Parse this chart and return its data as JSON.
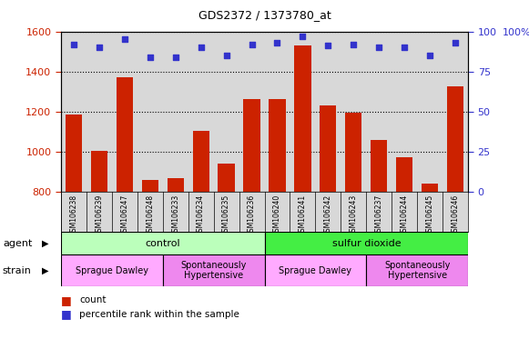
{
  "title": "GDS2372 / 1373780_at",
  "samples": [
    "GSM106238",
    "GSM106239",
    "GSM106247",
    "GSM106248",
    "GSM106233",
    "GSM106234",
    "GSM106235",
    "GSM106236",
    "GSM106240",
    "GSM106241",
    "GSM106242",
    "GSM106243",
    "GSM106237",
    "GSM106244",
    "GSM106245",
    "GSM106246"
  ],
  "counts": [
    1185,
    1005,
    1370,
    860,
    870,
    1105,
    940,
    1265,
    1265,
    1530,
    1230,
    1195,
    1060,
    975,
    840,
    1325
  ],
  "percentiles": [
    92,
    90,
    95,
    84,
    84,
    90,
    85,
    92,
    93,
    97,
    91,
    92,
    90,
    90,
    85,
    93
  ],
  "ylim_left": [
    800,
    1600
  ],
  "ylim_right": [
    0,
    100
  ],
  "yticks_left": [
    800,
    1000,
    1200,
    1400,
    1600
  ],
  "yticks_right": [
    0,
    25,
    50,
    75,
    100
  ],
  "bar_color": "#cc2200",
  "dot_color": "#3333cc",
  "agent_groups": [
    {
      "label": "control",
      "start": 0,
      "end": 8,
      "color": "#bbffbb"
    },
    {
      "label": "sulfur dioxide",
      "start": 8,
      "end": 16,
      "color": "#44ee44"
    }
  ],
  "strain_groups": [
    {
      "label": "Sprague Dawley",
      "start": 0,
      "end": 4,
      "color": "#ffaaff"
    },
    {
      "label": "Spontaneously\nHypertensive",
      "start": 4,
      "end": 8,
      "color": "#ee88ee"
    },
    {
      "label": "Sprague Dawley",
      "start": 8,
      "end": 12,
      "color": "#ffaaff"
    },
    {
      "label": "Spontaneously\nHypertensive",
      "start": 12,
      "end": 16,
      "color": "#ee88ee"
    }
  ],
  "tick_color_left": "#cc2200",
  "tick_color_right": "#3333cc",
  "plot_bg_color": "#d8d8d8"
}
